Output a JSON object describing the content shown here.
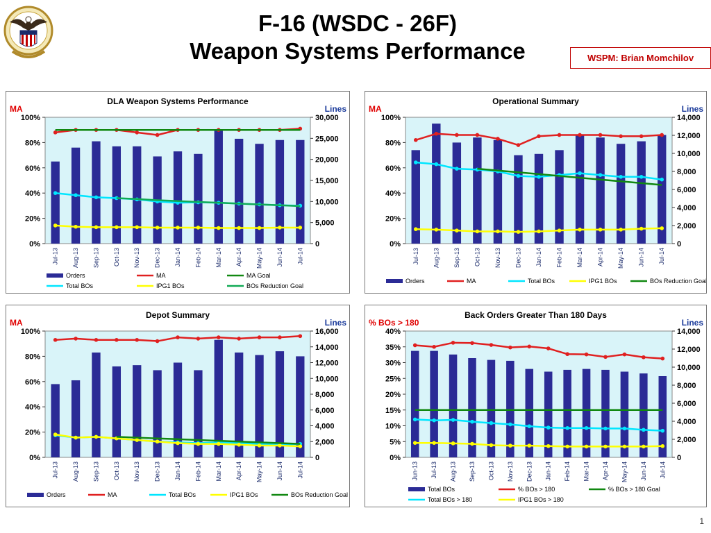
{
  "header": {
    "title_line1": "F-16 (WSDC - 26F)",
    "title_line2": "Weapon Systems Performance",
    "wspm": "WSPM:  Brian Momchilov"
  },
  "logo": {
    "name": "dla-eagle-seal-logo"
  },
  "colors": {
    "orders": "#2b2b96",
    "ma": "#e02020",
    "total_bos": "#00e6ff",
    "ipg1": "#ffff00",
    "goal_green": "#118811",
    "plot_bg": "#d9f4f9",
    "left_axis_label": "#e00000",
    "right_axis_label": "#1a3a9a"
  },
  "page_number": "1",
  "chart_data": [
    {
      "type": "bar",
      "title": "DLA Weapon Systems Performance",
      "left_label": "MA",
      "right_label": "Lines",
      "categories": [
        "Jul-13",
        "Aug-13",
        "Sep-13",
        "Oct-13",
        "Nov-13",
        "Dec-13",
        "Jan-14",
        "Feb-14",
        "Mar-14",
        "Apr-14",
        "May-14",
        "Jun-14",
        "Jul-14"
      ],
      "left_ticks": [
        "0%",
        "20%",
        "40%",
        "60%",
        "80%",
        "100%"
      ],
      "right_ticks": [
        "0",
        "5,000",
        "10,000",
        "15,000",
        "20,000",
        "25,000",
        "30,000"
      ],
      "left_range": [
        0,
        100
      ],
      "right_range": [
        0,
        30000
      ],
      "series": [
        {
          "name": "Orders",
          "kind": "bar",
          "axis": "left",
          "color": "#2b2b96",
          "values": [
            65,
            76,
            81,
            77,
            77,
            69,
            73,
            71,
            90,
            83,
            79,
            82,
            82
          ]
        },
        {
          "name": "MA",
          "kind": "line",
          "axis": "left",
          "color": "#e02020",
          "marker": true,
          "values": [
            88,
            90,
            90,
            90,
            88,
            86,
            90,
            90,
            90,
            90,
            90,
            90,
            91
          ]
        },
        {
          "name": "MA Goal",
          "kind": "line",
          "axis": "left",
          "color": "#118811",
          "values": [
            90,
            90,
            90,
            90,
            90,
            90,
            90,
            90,
            90,
            90,
            90,
            90,
            90
          ]
        },
        {
          "name": "Total BOs",
          "kind": "line",
          "axis": "right",
          "color": "#00e6ff",
          "marker": true,
          "values": [
            12000,
            11500,
            11000,
            10800,
            10500,
            10000,
            9700,
            9800,
            9700,
            9500,
            9300,
            9100,
            9000
          ]
        },
        {
          "name": "IPG1 BOs",
          "kind": "line",
          "axis": "right",
          "color": "#ffff00",
          "marker": true,
          "values": [
            4300,
            4000,
            3900,
            3900,
            3900,
            3800,
            3800,
            3800,
            3700,
            3700,
            3700,
            3800,
            3800
          ]
        },
        {
          "name": "BOs Reduction Goal",
          "kind": "line",
          "axis": "right",
          "color": "#11aa55",
          "values": [
            null,
            null,
            null,
            10800,
            10600,
            10300,
            10100,
            9900,
            9700,
            9500,
            9300,
            9100,
            8900
          ]
        }
      ],
      "legend": [
        {
          "name": "Orders",
          "kind": "bar",
          "color": "#2b2b96"
        },
        {
          "name": "MA",
          "kind": "line",
          "color": "#e02020"
        },
        {
          "name": "MA Goal",
          "kind": "line",
          "color": "#118811"
        },
        {
          "name": "Total BOs",
          "kind": "line",
          "color": "#00e6ff"
        },
        {
          "name": "IPG1 BOs",
          "kind": "line",
          "color": "#ffff00"
        },
        {
          "name": "BOs Reduction Goal",
          "kind": "line",
          "color": "#11aa55"
        }
      ],
      "legend_placement": "bottom"
    },
    {
      "type": "bar",
      "title": "Operational Summary",
      "left_label": "MA",
      "right_label": "Lines",
      "categories": [
        "Jul-13",
        "Aug-13",
        "Sep-13",
        "Oct-13",
        "Nov-13",
        "Dec-13",
        "Jan-14",
        "Feb-14",
        "Mar-14",
        "Apr-14",
        "May-14",
        "Jun-14",
        "Jul-14"
      ],
      "left_ticks": [
        "0%",
        "20%",
        "40%",
        "60%",
        "80%",
        "100%"
      ],
      "right_ticks": [
        "0",
        "2,000",
        "4,000",
        "6,000",
        "8,000",
        "10,000",
        "12,000",
        "14,000"
      ],
      "left_range": [
        0,
        100
      ],
      "right_range": [
        0,
        14000
      ],
      "series": [
        {
          "name": "Orders",
          "kind": "bar",
          "axis": "left",
          "color": "#2b2b96",
          "values": [
            74,
            95,
            80,
            84,
            82,
            70,
            71,
            74,
            86,
            84,
            79,
            81,
            86
          ]
        },
        {
          "name": "MA",
          "kind": "line",
          "axis": "left",
          "color": "#e02020",
          "marker": true,
          "values": [
            82,
            87,
            86,
            86,
            83,
            78,
            85,
            86,
            86,
            86,
            85,
            85,
            86
          ]
        },
        {
          "name": "Total BOs",
          "kind": "line",
          "axis": "right",
          "color": "#00e6ff",
          "marker": true,
          "values": [
            9000,
            8800,
            8300,
            8200,
            8000,
            7500,
            7400,
            7600,
            7800,
            7600,
            7400,
            7400,
            7100
          ]
        },
        {
          "name": "IPG1 BOs",
          "kind": "line",
          "axis": "right",
          "color": "#ffff00",
          "marker": true,
          "values": [
            1600,
            1550,
            1450,
            1350,
            1350,
            1300,
            1350,
            1450,
            1550,
            1550,
            1550,
            1650,
            1700
          ]
        },
        {
          "name": "BOs Reduction Goal",
          "kind": "line",
          "axis": "right",
          "color": "#118811",
          "values": [
            null,
            null,
            null,
            8300,
            8100,
            7900,
            7700,
            7500,
            7300,
            7100,
            6900,
            6700,
            6500
          ]
        }
      ],
      "legend": [
        {
          "name": "Orders",
          "kind": "bar",
          "color": "#2b2b96"
        },
        {
          "name": "MA",
          "kind": "line",
          "color": "#e02020"
        },
        {
          "name": "Total BOs",
          "kind": "line",
          "color": "#00e6ff"
        },
        {
          "name": "IPG1 BOs",
          "kind": "line",
          "color": "#ffff00"
        },
        {
          "name": "BOs Reduction Goal",
          "kind": "line",
          "color": "#118811"
        }
      ],
      "legend_placement": "bottom"
    },
    {
      "type": "bar",
      "title": "Depot Summary",
      "left_label": "MA",
      "right_label": "Lines",
      "categories": [
        "Jul-13",
        "Aug-13",
        "Sep-13",
        "Oct-13",
        "Nov-13",
        "Dec-13",
        "Jan-14",
        "Feb-14",
        "Mar-14",
        "Apr-14",
        "May-14",
        "Jun-14",
        "Jul-14"
      ],
      "left_ticks": [
        "0%",
        "20%",
        "40%",
        "60%",
        "80%",
        "100%"
      ],
      "right_ticks": [
        "0",
        "2,000",
        "4,000",
        "6,000",
        "8,000",
        "10,000",
        "12,000",
        "14,000",
        "16,000"
      ],
      "left_range": [
        0,
        100
      ],
      "right_range": [
        0,
        16000
      ],
      "series": [
        {
          "name": "Orders",
          "kind": "bar",
          "axis": "left",
          "color": "#2b2b96",
          "values": [
            58,
            61,
            83,
            72,
            73,
            69,
            75,
            69,
            93,
            83,
            81,
            84,
            80
          ]
        },
        {
          "name": "MA",
          "kind": "line",
          "axis": "left",
          "color": "#e02020",
          "marker": true,
          "values": [
            93,
            94,
            93,
            93,
            93,
            92,
            95,
            94,
            95,
            94,
            95,
            95,
            96
          ]
        },
        {
          "name": "Total BOs",
          "kind": "line",
          "axis": "right",
          "color": "#00e6ff",
          "marker": true,
          "values": [
            2800,
            2500,
            2600,
            2400,
            2200,
            2000,
            1900,
            1800,
            1900,
            1800,
            1700,
            1600,
            1700
          ]
        },
        {
          "name": "IPG1 BOs",
          "kind": "line",
          "axis": "right",
          "color": "#ffff00",
          "marker": true,
          "values": [
            2900,
            2500,
            2600,
            2400,
            2200,
            2000,
            1800,
            1700,
            1700,
            1600,
            1500,
            1500,
            1400
          ]
        },
        {
          "name": "BOs Reduction Goal",
          "kind": "line",
          "axis": "right",
          "color": "#118811",
          "values": [
            null,
            null,
            null,
            2600,
            2500,
            2400,
            2300,
            2200,
            2100,
            2000,
            1900,
            1800,
            1700
          ]
        }
      ],
      "legend": [
        {
          "name": "Orders",
          "kind": "bar",
          "color": "#2b2b96"
        },
        {
          "name": "MA",
          "kind": "line",
          "color": "#e02020"
        },
        {
          "name": "Total BOs",
          "kind": "line",
          "color": "#00e6ff"
        },
        {
          "name": "IPG1 BOs",
          "kind": "line",
          "color": "#ffff00"
        },
        {
          "name": "BOs Reduction Goal",
          "kind": "line",
          "color": "#118811"
        }
      ],
      "legend_placement": "bottom"
    },
    {
      "type": "bar",
      "title": "Back Orders Greater Than 180 Days",
      "left_label": "% BOs > 180",
      "right_label": "Lines",
      "categories": [
        "Jun-13",
        "Jul-13",
        "Aug-13",
        "Sep-13",
        "Oct-13",
        "Nov-13",
        "Dec-13",
        "Jan-14",
        "Feb-14",
        "Mar-14",
        "Apr-14",
        "May-14",
        "Jun-14",
        "Jul-14"
      ],
      "left_ticks": [
        "0%",
        "5%",
        "10%",
        "15%",
        "20%",
        "25%",
        "30%",
        "35%",
        "40%"
      ],
      "right_ticks": [
        "0",
        "2,000",
        "4,000",
        "6,000",
        "8,000",
        "10,000",
        "12,000",
        "14,000"
      ],
      "left_range": [
        0,
        40
      ],
      "right_range": [
        0,
        14000
      ],
      "series": [
        {
          "name": "Total BOs",
          "kind": "bar",
          "axis": "right",
          "color": "#2b2b96",
          "values": [
            11800,
            11800,
            11400,
            11000,
            10800,
            10700,
            9800,
            9500,
            9700,
            9800,
            9700,
            9500,
            9300,
            9000
          ]
        },
        {
          "name": "% BOs > 180",
          "kind": "line",
          "axis": "left",
          "color": "#e02020",
          "marker": true,
          "values": [
            35.5,
            35,
            36.3,
            36.2,
            35.6,
            34.8,
            35.1,
            34.5,
            32.7,
            32.6,
            31.8,
            32.6,
            31.7,
            31.3
          ]
        },
        {
          "name": "% BOs > 180 Goal",
          "kind": "line",
          "axis": "left",
          "color": "#118811",
          "values": [
            15,
            15,
            15,
            15,
            15,
            15,
            15,
            15,
            15,
            15,
            15,
            15,
            15,
            15
          ]
        },
        {
          "name": "Total BOs > 180",
          "kind": "line",
          "axis": "right",
          "color": "#00e6ff",
          "marker": true,
          "values": [
            4200,
            4100,
            4150,
            3950,
            3800,
            3650,
            3450,
            3300,
            3250,
            3250,
            3200,
            3200,
            3050,
            2950
          ]
        },
        {
          "name": "IPG1 BOs > 180",
          "kind": "line",
          "axis": "right",
          "color": "#ffff00",
          "marker": true,
          "values": [
            1600,
            1600,
            1550,
            1500,
            1350,
            1300,
            1300,
            1250,
            1200,
            1200,
            1200,
            1200,
            1200,
            1250
          ]
        }
      ],
      "legend": [
        {
          "name": "Total BOs",
          "kind": "bar",
          "color": "#2b2b96"
        },
        {
          "name": "% BOs > 180",
          "kind": "line",
          "color": "#e02020"
        },
        {
          "name": "% BOs > 180 Goal",
          "kind": "line",
          "color": "#118811"
        },
        {
          "name": "Total BOs > 180",
          "kind": "line",
          "color": "#00e6ff"
        },
        {
          "name": "IPG1 BOs > 180",
          "kind": "line",
          "color": "#ffff00"
        }
      ],
      "legend_placement": "bottom"
    }
  ]
}
